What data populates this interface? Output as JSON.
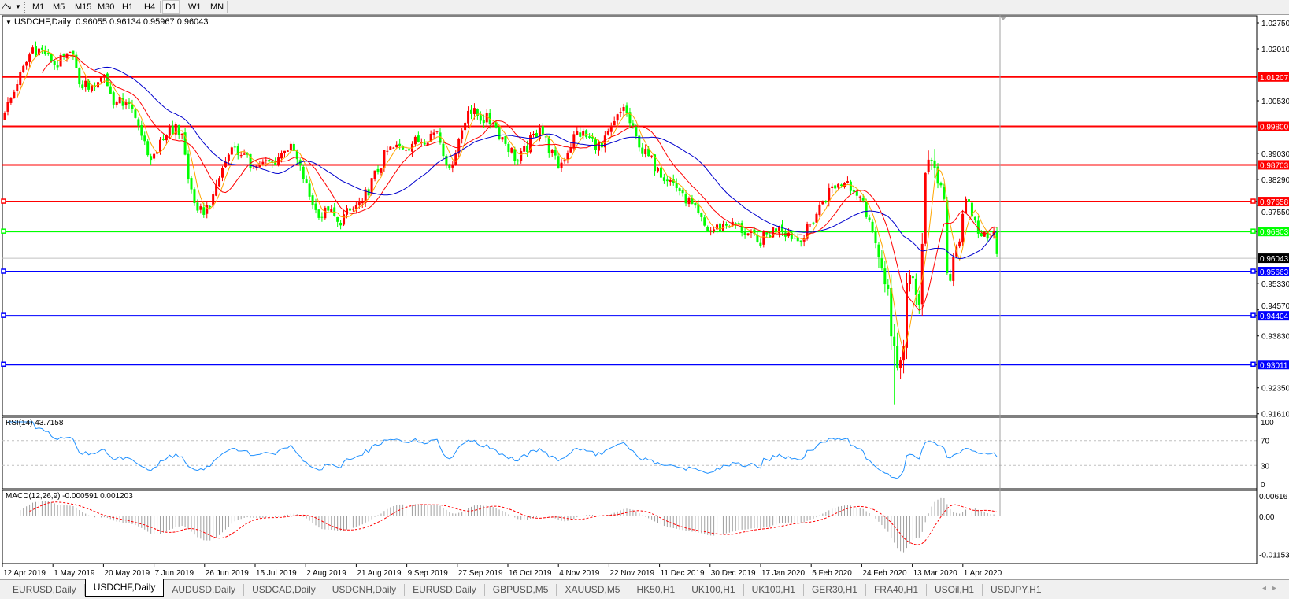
{
  "toolbar": {
    "cursor_icon": "line-tool-icon",
    "timeframes": [
      "M1",
      "M5",
      "M15",
      "M30",
      "H1",
      "H4",
      "D1",
      "W1",
      "MN"
    ],
    "active_timeframe": "D1"
  },
  "chart_header": {
    "symbol": "USDCHF,Daily",
    "ohlc": "0.96055 0.96134 0.95967 0.96043"
  },
  "colors": {
    "bull_candle": "#ff0000",
    "bear_candle": "#00ff00",
    "ma_fast": "#ffa500",
    "ma_mid": "#ff0000",
    "ma_slow": "#0000cd",
    "rsi_line": "#1e90ff",
    "macd_hist": "#a0a0a0",
    "macd_signal": "#ff0000"
  },
  "chart_data": {
    "type": "candlestick",
    "symbol": "USDCHF",
    "timeframe": "Daily",
    "last_bar": {
      "open": 0.96055,
      "high": 0.96134,
      "low": 0.95967,
      "close": 0.96043
    },
    "ylim": [
      0.9161,
      1.0275
    ],
    "price_ticks": [
      "1.02750",
      "1.02010",
      "1.00530",
      "0.99030",
      "0.98290",
      "0.97550",
      "0.95330",
      "0.94570",
      "0.93830",
      "0.92350",
      "0.91610"
    ],
    "close_keypoints_bar_price": [
      [
        0,
        1.0019
      ],
      [
        4,
        1.01
      ],
      [
        9,
        1.0205
      ],
      [
        14,
        1.0188
      ],
      [
        16,
        1.0154
      ],
      [
        22,
        1.0183
      ],
      [
        24,
        1.01
      ],
      [
        28,
        1.0098
      ],
      [
        32,
        1.0127
      ],
      [
        35,
        1.0042
      ],
      [
        39,
        1.005
      ],
      [
        43,
        0.9981
      ],
      [
        46,
        0.9898
      ],
      [
        49,
        0.9907
      ],
      [
        53,
        0.998
      ],
      [
        57,
        0.9959
      ],
      [
        59,
        0.983
      ],
      [
        62,
        0.974
      ],
      [
        64,
        0.9728
      ],
      [
        67,
        0.9786
      ],
      [
        70,
        0.9862
      ],
      [
        73,
        0.992
      ],
      [
        76,
        0.9898
      ],
      [
        80,
        0.9862
      ],
      [
        82,
        0.987
      ],
      [
        86,
        0.9876
      ],
      [
        90,
        0.991
      ],
      [
        92,
        0.993
      ],
      [
        96,
        0.983
      ],
      [
        99,
        0.9757
      ],
      [
        101,
        0.9719
      ],
      [
        104,
        0.974
      ],
      [
        107,
        0.9708
      ],
      [
        115,
        0.9766
      ],
      [
        123,
        0.991
      ],
      [
        131,
        0.993
      ],
      [
        139,
        0.9966
      ],
      [
        143,
        0.986
      ],
      [
        149,
        1.0024
      ],
      [
        157,
        0.999
      ],
      [
        165,
        0.988
      ],
      [
        172,
        0.9977
      ],
      [
        178,
        0.986
      ],
      [
        184,
        0.9966
      ],
      [
        192,
        0.992
      ],
      [
        199,
        1.0035
      ],
      [
        204,
        0.992
      ],
      [
        210,
        0.986
      ],
      [
        218,
        0.979
      ],
      [
        226,
        0.968
      ],
      [
        234,
        0.9708
      ],
      [
        242,
        0.965
      ],
      [
        249,
        0.9696
      ],
      [
        256,
        0.965
      ],
      [
        263,
        0.9766
      ],
      [
        266,
        0.9809
      ],
      [
        271,
        0.9824
      ],
      [
        275,
        0.978
      ],
      [
        278,
        0.9712
      ],
      [
        281,
        0.9607
      ],
      [
        284,
        0.9517
      ],
      [
        285,
        0.9382
      ],
      [
        287,
        0.9293
      ],
      [
        289,
        0.9353
      ],
      [
        290,
        0.9533
      ],
      [
        292,
        0.9548
      ],
      [
        294,
        0.9472
      ],
      [
        295,
        0.9645
      ],
      [
        296,
        0.9847
      ],
      [
        297,
        0.9885
      ],
      [
        299,
        0.9862
      ],
      [
        300,
        0.9817
      ],
      [
        302,
        0.9773
      ],
      [
        303,
        0.9562
      ],
      [
        304,
        0.954
      ],
      [
        305,
        0.9607
      ],
      [
        307,
        0.9652
      ],
      [
        309,
        0.9773
      ],
      [
        310,
        0.9764
      ],
      [
        312,
        0.9712
      ],
      [
        314,
        0.9667
      ],
      [
        316,
        0.966
      ],
      [
        318,
        0.968
      ],
      [
        319,
        0.9616
      ],
      [
        320,
        0.96043
      ]
    ],
    "extremes": {
      "low": 0.9188,
      "high": 1.0222
    },
    "moving_averages": [
      "fast",
      "mid",
      "slow"
    ],
    "horizontal_levels": [
      {
        "price": "1.01207",
        "color": "#ff0000"
      },
      {
        "price": "0.99800",
        "color": "#ff0000"
      },
      {
        "price": "0.98703",
        "color": "#ff0000"
      },
      {
        "price": "0.97658",
        "color": "#ff0000"
      },
      {
        "price": "0.96803",
        "color": "#00ff00"
      },
      {
        "price": "0.96043",
        "color": "#000000",
        "line": "#c0c0c0"
      },
      {
        "price": "0.95663",
        "color": "#0000ff"
      },
      {
        "price": "0.94404",
        "color": "#0000ff"
      },
      {
        "price": "0.93011",
        "color": "#0000ff"
      }
    ],
    "date_labels": [
      "12 Apr 2019",
      "1 May 2019",
      "20 May 2019",
      "7 Jun 2019",
      "26 Jun 2019",
      "15 Jul 2019",
      "2 Aug 2019",
      "21 Aug 2019",
      "9 Sep 2019",
      "27 Sep 2019",
      "16 Oct 2019",
      "4 Nov 2019",
      "22 Nov 2019",
      "11 Dec 2019",
      "30 Dec 2019",
      "17 Jan 2020",
      "5 Feb 2020",
      "24 Feb 2020",
      "13 Mar 2020",
      "1 Apr 2020"
    ]
  },
  "rsi": {
    "label": "RSI(14) 43.7158",
    "ticks": [
      "100",
      "70",
      "30",
      "0"
    ],
    "levels": [
      70,
      30
    ]
  },
  "macd": {
    "label": "MACD(12,26,9) -0.000591 0.001203",
    "ticks": [
      "0.006167",
      "0.00",
      "-0.011531"
    ],
    "tick_values": [
      0.006167,
      0,
      -0.011531
    ]
  },
  "tabs": [
    "EURUSD,Daily",
    "USDCHF,Daily",
    "AUDUSD,Daily",
    "USDCAD,Daily",
    "USDCNH,Daily",
    "EURUSD,Daily",
    "GBPUSD,M5",
    "XAUUSD,M5",
    "HK50,H1",
    "UK100,H1",
    "UK100,H1",
    "GER30,H1",
    "FRA40,H1",
    "USOil,H1",
    "USDJPY,H1"
  ],
  "active_tab": 1
}
